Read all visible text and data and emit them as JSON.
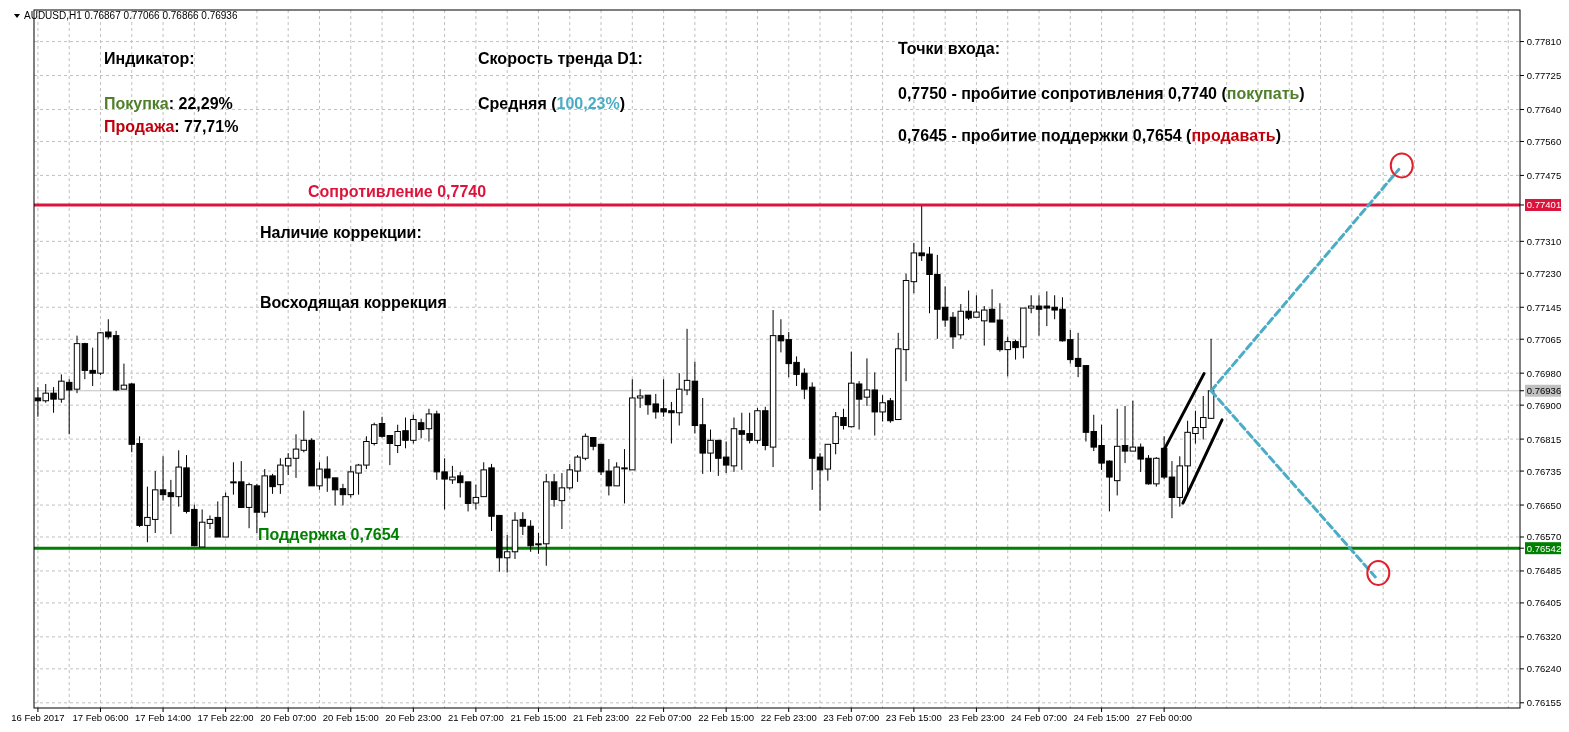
{
  "chart_data": {
    "type": "candlestick",
    "title": "AUDUSD,H1  0.76867 0.77066 0.76866 0.76936",
    "annotations": [
      "Индикатор:",
      "Покупка: 22,29%",
      "Продажа: 77,71%",
      "Скорость тренда D1:",
      "Средняя (100,23%)",
      "Точки входа:",
      "0,7750 - пробитие сопротивления 0,7740 (покупать)",
      "0,7645 - пробитие поддержки 0,7654 (продавать)",
      "Наличие коррекции:",
      "Восходящая коррекция"
    ],
    "categories": [
      "16 Feb 2017",
      null,
      null,
      null,
      null,
      null,
      null,
      null,
      "17 Feb 06:00",
      null,
      null,
      null,
      null,
      null,
      null,
      null,
      "17 Feb 14:00",
      null,
      null,
      null,
      null,
      null,
      null,
      null,
      "17 Feb 22:00",
      null,
      null,
      null,
      null,
      null,
      null,
      null,
      "20 Feb 07:00",
      null,
      null,
      null,
      null,
      null,
      null,
      null,
      "20 Feb 15:00",
      null,
      null,
      null,
      null,
      null,
      null,
      null,
      "20 Feb 23:00",
      null,
      null,
      null,
      null,
      null,
      null,
      null,
      "21 Feb 07:00",
      null,
      null,
      null,
      null,
      null,
      null,
      null,
      "21 Feb 15:00",
      null,
      null,
      null,
      null,
      null,
      null,
      null,
      "21 Feb 23:00",
      null,
      null,
      null,
      null,
      null,
      null,
      null,
      "22 Feb 07:00",
      null,
      null,
      null,
      null,
      null,
      null,
      null,
      "22 Feb 15:00",
      null,
      null,
      null,
      null,
      null,
      null,
      null,
      "22 Feb 23:00",
      null,
      null,
      null,
      null,
      null,
      null,
      null,
      "23 Feb 07:00",
      null,
      null,
      null,
      null,
      null,
      null,
      null,
      "23 Feb 15:00",
      null,
      null,
      null,
      null,
      null,
      null,
      null,
      "23 Feb 23:00",
      null,
      null,
      null,
      null,
      null,
      null,
      null,
      "24 Feb 07:00",
      null,
      null,
      null,
      null,
      null,
      null,
      null,
      "24 Feb 15:00",
      null,
      null,
      null,
      null,
      null,
      null,
      null,
      "27 Feb 00:00",
      null,
      null,
      null,
      null,
      null,
      null,
      null,
      null,
      null,
      null,
      null,
      null,
      null,
      null,
      null,
      null,
      null,
      null,
      null,
      null,
      null,
      null,
      null,
      null,
      null,
      null,
      null,
      null,
      null,
      null,
      null,
      null,
      null,
      null,
      null,
      null,
      null,
      null,
      null,
      null,
      null,
      null,
      null,
      null,
      null
    ],
    "ohlc": [
      [
        0.76918,
        0.76945,
        0.76871,
        0.76911
      ],
      [
        0.76911,
        0.76953,
        0.76906,
        0.7693
      ],
      [
        0.7693,
        0.76945,
        0.76881,
        0.76915
      ],
      [
        0.76915,
        0.76977,
        0.76906,
        0.7696
      ],
      [
        0.76957,
        0.76965,
        0.76827,
        0.76938
      ],
      [
        0.7694,
        0.77074,
        0.7693,
        0.77054
      ],
      [
        0.77054,
        0.77056,
        0.76965,
        0.76987
      ],
      [
        0.76987,
        0.77044,
        0.76948,
        0.7698
      ],
      [
        0.7698,
        0.77083,
        0.76975,
        0.77081
      ],
      [
        0.77083,
        0.77115,
        0.77066,
        0.77071
      ],
      [
        0.77074,
        0.77086,
        0.76935,
        0.76938
      ],
      [
        0.7694,
        0.77004,
        0.7694,
        0.7695
      ],
      [
        0.76953,
        0.76955,
        0.76782,
        0.76802
      ],
      [
        0.76804,
        0.76822,
        0.76595,
        0.76599
      ],
      [
        0.76599,
        0.76696,
        0.76557,
        0.76619
      ],
      [
        0.76614,
        0.76735,
        0.7658,
        0.76688
      ],
      [
        0.76688,
        0.76772,
        0.76661,
        0.76676
      ],
      [
        0.76681,
        0.76713,
        0.76577,
        0.76671
      ],
      [
        0.76671,
        0.76787,
        0.76646,
        0.76745
      ],
      [
        0.76743,
        0.76775,
        0.76629,
        0.76634
      ],
      [
        0.76639,
        0.76651,
        0.76548,
        0.76548
      ],
      [
        0.76545,
        0.76639,
        0.76545,
        0.76607
      ],
      [
        0.76604,
        0.76624,
        0.7659,
        0.76614
      ],
      [
        0.76619,
        0.76659,
        0.7657,
        0.7657
      ],
      [
        0.7657,
        0.76681,
        0.7657,
        0.76671
      ],
      [
        0.76708,
        0.76757,
        0.76676,
        0.76708
      ],
      [
        0.76708,
        0.7676,
        0.76644,
        0.76644
      ],
      [
        0.76644,
        0.76706,
        0.76592,
        0.76701
      ],
      [
        0.76698,
        0.76703,
        0.7658,
        0.76632
      ],
      [
        0.76632,
        0.7674,
        0.76619,
        0.76723
      ],
      [
        0.76723,
        0.76728,
        0.76678,
        0.76696
      ],
      [
        0.76701,
        0.76767,
        0.76678,
        0.7675
      ],
      [
        0.76748,
        0.7678,
        0.76725,
        0.76767
      ],
      [
        0.76767,
        0.76827,
        0.76718,
        0.7679
      ],
      [
        0.76787,
        0.76886,
        0.76782,
        0.76812
      ],
      [
        0.76812,
        0.76817,
        0.76698,
        0.76698
      ],
      [
        0.76698,
        0.76757,
        0.76688,
        0.7674
      ],
      [
        0.7674,
        0.76772,
        0.76683,
        0.76718
      ],
      [
        0.76718,
        0.76718,
        0.76649,
        0.76688
      ],
      [
        0.76691,
        0.76703,
        0.76649,
        0.76676
      ],
      [
        0.76676,
        0.76748,
        0.76669,
        0.76733
      ],
      [
        0.7673,
        0.76753,
        0.76676,
        0.7675
      ],
      [
        0.7675,
        0.76822,
        0.7674,
        0.76809
      ],
      [
        0.76804,
        0.76856,
        0.76799,
        0.76851
      ],
      [
        0.76854,
        0.76871,
        0.76819,
        0.76822
      ],
      [
        0.76824,
        0.76824,
        0.7675,
        0.76804
      ],
      [
        0.76799,
        0.76851,
        0.7678,
        0.76834
      ],
      [
        0.76836,
        0.76869,
        0.76792,
        0.76812
      ],
      [
        0.76812,
        0.76876,
        0.76804,
        0.76864
      ],
      [
        0.76856,
        0.76866,
        0.76817,
        0.76839
      ],
      [
        0.76841,
        0.76891,
        0.76809,
        0.76878
      ],
      [
        0.76878,
        0.76886,
        0.76713,
        0.76733
      ],
      [
        0.76733,
        0.76767,
        0.76639,
        0.76715
      ],
      [
        0.76713,
        0.76748,
        0.76703,
        0.7672
      ],
      [
        0.76723,
        0.76733,
        0.76669,
        0.76706
      ],
      [
        0.76708,
        0.76708,
        0.76634,
        0.76654
      ],
      [
        0.76655,
        0.76701,
        0.76639,
        0.76669
      ],
      [
        0.76671,
        0.76757,
        0.76671,
        0.76738
      ],
      [
        0.76743,
        0.76753,
        0.76585,
        0.76622
      ],
      [
        0.76624,
        0.76624,
        0.76483,
        0.76518
      ],
      [
        0.76518,
        0.76575,
        0.76481,
        0.76533
      ],
      [
        0.76533,
        0.76632,
        0.76515,
        0.76612
      ],
      [
        0.76614,
        0.76632,
        0.76575,
        0.76597
      ],
      [
        0.76597,
        0.76612,
        0.76533,
        0.76548
      ],
      [
        0.76553,
        0.7658,
        0.76528,
        0.76553
      ],
      [
        0.76553,
        0.76728,
        0.76498,
        0.76708
      ],
      [
        0.76708,
        0.76728,
        0.76646,
        0.76664
      ],
      [
        0.76661,
        0.7673,
        0.7659,
        0.76693
      ],
      [
        0.76693,
        0.76753,
        0.76688,
        0.76738
      ],
      [
        0.76735,
        0.76775,
        0.76708,
        0.7677
      ],
      [
        0.76767,
        0.76829,
        0.76762,
        0.76822
      ],
      [
        0.76819,
        0.76819,
        0.76787,
        0.76797
      ],
      [
        0.76802,
        0.76802,
        0.76725,
        0.76733
      ],
      [
        0.76735,
        0.76765,
        0.76674,
        0.76698
      ],
      [
        0.76698,
        0.76757,
        0.76698,
        0.76745
      ],
      [
        0.76743,
        0.7679,
        0.76654,
        0.76743
      ],
      [
        0.76738,
        0.76965,
        0.76738,
        0.76918
      ],
      [
        0.76918,
        0.7694,
        0.76893,
        0.76923
      ],
      [
        0.76925,
        0.76925,
        0.76876,
        0.76901
      ],
      [
        0.76903,
        0.76928,
        0.76866,
        0.76883
      ],
      [
        0.76891,
        0.76965,
        0.76871,
        0.76883
      ],
      [
        0.76886,
        0.76908,
        0.76804,
        0.76881
      ],
      [
        0.76881,
        0.7698,
        0.76849,
        0.7694
      ],
      [
        0.76938,
        0.77091,
        0.76925,
        0.76962
      ],
      [
        0.7696,
        0.77009,
        0.76829,
        0.76849
      ],
      [
        0.76851,
        0.76918,
        0.76728,
        0.7678
      ],
      [
        0.7678,
        0.76839,
        0.76733,
        0.76812
      ],
      [
        0.76812,
        0.76812,
        0.76723,
        0.76767
      ],
      [
        0.7677,
        0.76809,
        0.7673,
        0.7675
      ],
      [
        0.76748,
        0.76869,
        0.76733,
        0.76841
      ],
      [
        0.76836,
        0.76881,
        0.76738,
        0.76827
      ],
      [
        0.76829,
        0.76881,
        0.76804,
        0.76812
      ],
      [
        0.76812,
        0.76893,
        0.76804,
        0.76886
      ],
      [
        0.76886,
        0.76896,
        0.76787,
        0.76799
      ],
      [
        0.76795,
        0.77138,
        0.76745,
        0.77074
      ],
      [
        0.77074,
        0.77115,
        0.77032,
        0.77061
      ],
      [
        0.77064,
        0.77083,
        0.7697,
        0.77004
      ],
      [
        0.77007,
        0.77022,
        0.76948,
        0.76977
      ],
      [
        0.7698,
        0.76992,
        0.76915,
        0.7694
      ],
      [
        0.76945,
        0.76957,
        0.76688,
        0.76767
      ],
      [
        0.7677,
        0.7678,
        0.76636,
        0.76738
      ],
      [
        0.7674,
        0.76802,
        0.76711,
        0.76802
      ],
      [
        0.76804,
        0.76883,
        0.76777,
        0.76871
      ],
      [
        0.76869,
        0.76891,
        0.76839,
        0.76849
      ],
      [
        0.76846,
        0.77034,
        0.76844,
        0.76955
      ],
      [
        0.76953,
        0.7696,
        0.76839,
        0.76915
      ],
      [
        0.7692,
        0.77017,
        0.76898,
        0.76938
      ],
      [
        0.76938,
        0.76982,
        0.76824,
        0.76883
      ],
      [
        0.76883,
        0.76925,
        0.76859,
        0.76906
      ],
      [
        0.76911,
        0.76918,
        0.76856,
        0.76861
      ],
      [
        0.76864,
        0.77081,
        0.76864,
        0.77041
      ],
      [
        0.77039,
        0.77229,
        0.7696,
        0.77212
      ],
      [
        0.77209,
        0.77306,
        0.7718,
        0.77281
      ],
      [
        0.77281,
        0.77398,
        0.77261,
        0.77274
      ],
      [
        0.77278,
        0.77296,
        0.7713,
        0.77227
      ],
      [
        0.77227,
        0.77276,
        0.77066,
        0.7714
      ],
      [
        0.77145,
        0.77197,
        0.77096,
        0.77113
      ],
      [
        0.7712,
        0.77133,
        0.77041,
        0.77071
      ],
      [
        0.77076,
        0.77153,
        0.77066,
        0.77135
      ],
      [
        0.77135,
        0.77187,
        0.77113,
        0.77118
      ],
      [
        0.7712,
        0.77175,
        0.7712,
        0.77133
      ],
      [
        0.77111,
        0.77148,
        0.77049,
        0.77138
      ],
      [
        0.7714,
        0.7719,
        0.77108,
        0.77108
      ],
      [
        0.77113,
        0.77155,
        0.77034,
        0.77039
      ],
      [
        0.77039,
        0.77071,
        0.76972,
        0.77059
      ],
      [
        0.77059,
        0.77064,
        0.77014,
        0.77044
      ],
      [
        0.77046,
        0.77143,
        0.77017,
        0.77143
      ],
      [
        0.77143,
        0.77175,
        0.7713,
        0.77148
      ],
      [
        0.77148,
        0.77175,
        0.77074,
        0.7714
      ],
      [
        0.77148,
        0.77185,
        0.77098,
        0.77143
      ],
      [
        0.77145,
        0.77175,
        0.77115,
        0.77138
      ],
      [
        0.7714,
        0.7717,
        0.77059,
        0.77061
      ],
      [
        0.77064,
        0.77088,
        0.77004,
        0.77014
      ],
      [
        0.77017,
        0.77081,
        0.7697,
        0.76997
      ],
      [
        0.76999,
        0.76999,
        0.76809,
        0.76832
      ],
      [
        0.76834,
        0.76876,
        0.76785,
        0.76795
      ],
      [
        0.76799,
        0.76851,
        0.76738,
        0.76755
      ],
      [
        0.7676,
        0.76762,
        0.76634,
        0.7672
      ],
      [
        0.76711,
        0.76891,
        0.76674,
        0.76797
      ],
      [
        0.76799,
        0.76898,
        0.76755,
        0.76785
      ],
      [
        0.76785,
        0.76911,
        0.76785,
        0.76795
      ],
      [
        0.76795,
        0.76804,
        0.76733,
        0.76765
      ],
      [
        0.76767,
        0.76775,
        0.76701,
        0.76703
      ],
      [
        0.76703,
        0.7677,
        0.76696,
        0.76767
      ],
      [
        0.76792,
        0.76822,
        0.76715,
        0.7672
      ],
      [
        0.7672,
        0.7676,
        0.76617,
        0.76669
      ],
      [
        0.76669,
        0.76772,
        0.76646,
        0.76748
      ],
      [
        0.76748,
        0.76861,
        0.76674,
        0.76832
      ],
      [
        0.76829,
        0.76886,
        0.76804,
        0.76844
      ],
      [
        0.76844,
        0.76923,
        0.76814,
        0.76869
      ],
      [
        0.76867,
        0.77066,
        0.76866,
        0.76936
      ],
      null,
      null,
      null,
      null,
      null,
      null,
      null,
      null,
      null,
      null,
      null,
      null,
      null,
      null,
      null,
      null,
      null,
      null,
      null,
      null,
      null,
      null,
      null,
      null,
      null,
      null,
      null,
      null,
      null,
      null,
      null,
      null,
      null,
      null,
      null,
      null,
      null,
      null,
      null
    ],
    "series": [
      {
        "type": "line",
        "color": "#4bacc6",
        "line_style": "dashed",
        "values": [
          null,
          null,
          null,
          null,
          null,
          null,
          null,
          null,
          null,
          null,
          null,
          null,
          null,
          null,
          null,
          null,
          null,
          null,
          null,
          null,
          null,
          null,
          null,
          null,
          null,
          null,
          null,
          null,
          null,
          null,
          null,
          null,
          null,
          null,
          null,
          null,
          null,
          null,
          null,
          null,
          null,
          null,
          null,
          null,
          null,
          null,
          null,
          null,
          null,
          null,
          null,
          null,
          null,
          null,
          null,
          null,
          null,
          null,
          null,
          null,
          null,
          null,
          null,
          null,
          null,
          null,
          null,
          null,
          null,
          null,
          null,
          null,
          null,
          null,
          null,
          null,
          null,
          null,
          null,
          null,
          null,
          null,
          null,
          null,
          null,
          null,
          null,
          null,
          null,
          null,
          null,
          null,
          null,
          null,
          null,
          null,
          null,
          null,
          null,
          null,
          null,
          null,
          null,
          null,
          null,
          null,
          null,
          null,
          null,
          null,
          null,
          null,
          null,
          null,
          null,
          null,
          null,
          null,
          null,
          null,
          null,
          null,
          null,
          null,
          null,
          null,
          null,
          null,
          null,
          null,
          null,
          null,
          null,
          null,
          null,
          null,
          null,
          null,
          null,
          null,
          null,
          null,
          null,
          null,
          null,
          null,
          null,
          null,
          null,
          null,
          0.76936,
          null,
          null,
          null,
          null,
          null,
          null,
          null,
          null,
          null,
          null,
          null,
          null,
          null,
          null,
          null,
          null,
          null,
          null,
          null,
          null,
          null,
          null,
          null,
          0.7749,
          null,
          null,
          null,
          null,
          null,
          null,
          null,
          null,
          null,
          null,
          null,
          null,
          null,
          null,
          null
        ]
      },
      {
        "type": "line",
        "color": "#4bacc6",
        "line_style": "dashed",
        "values": [
          null,
          null,
          null,
          null,
          null,
          null,
          null,
          null,
          null,
          null,
          null,
          null,
          null,
          null,
          null,
          null,
          null,
          null,
          null,
          null,
          null,
          null,
          null,
          null,
          null,
          null,
          null,
          null,
          null,
          null,
          null,
          null,
          null,
          null,
          null,
          null,
          null,
          null,
          null,
          null,
          null,
          null,
          null,
          null,
          null,
          null,
          null,
          null,
          null,
          null,
          null,
          null,
          null,
          null,
          null,
          null,
          null,
          null,
          null,
          null,
          null,
          null,
          null,
          null,
          null,
          null,
          null,
          null,
          null,
          null,
          null,
          null,
          null,
          null,
          null,
          null,
          null,
          null,
          null,
          null,
          null,
          null,
          null,
          null,
          null,
          null,
          null,
          null,
          null,
          null,
          null,
          null,
          null,
          null,
          null,
          null,
          null,
          null,
          null,
          null,
          null,
          null,
          null,
          null,
          null,
          null,
          null,
          null,
          null,
          null,
          null,
          null,
          null,
          null,
          null,
          null,
          null,
          null,
          null,
          null,
          null,
          null,
          null,
          null,
          null,
          null,
          null,
          null,
          null,
          null,
          null,
          null,
          null,
          null,
          null,
          null,
          null,
          null,
          null,
          null,
          null,
          null,
          null,
          null,
          null,
          null,
          null,
          null,
          null,
          null,
          0.76936,
          null,
          null,
          null,
          null,
          null,
          null,
          null,
          null,
          null,
          null,
          null,
          null,
          null,
          null,
          null,
          null,
          null,
          null,
          null,
          null,
          0.7647,
          null,
          null,
          null,
          null,
          null,
          null,
          null,
          null,
          null,
          null,
          null,
          null,
          null,
          null,
          null,
          null,
          null,
          null
        ]
      }
    ],
    "ylim": [
      0.76142,
      0.77889
    ],
    "yticks": [
      {
        "value": 0.7781,
        "label": "0.77810"
      },
      0.77725,
      {
        "value": 0.7764,
        "label": "0.77640"
      },
      {
        "value": 0.7756,
        "label": "0.77560"
      },
      0.77475,
      {
        "value": 0.77401,
        "label": "0.77401"
      },
      {
        "value": 0.7731,
        "label": "0.77310"
      },
      {
        "value": 0.7723,
        "label": "0.77230"
      },
      0.77145,
      0.77065,
      {
        "value": 0.7698,
        "label": "0.76980"
      },
      {
        "value": 0.76936,
        "label": "0.76936"
      },
      {
        "value": 0.769,
        "label": "0.76900"
      },
      0.76815,
      0.76735,
      {
        "value": 0.7665,
        "label": "0.76650"
      },
      {
        "value": 0.7657,
        "label": "0.76570"
      },
      {
        "value": 0.76542,
        "label": "0.76542"
      },
      0.76485,
      0.76405,
      {
        "value": 0.7632,
        "label": "0.76320"
      },
      {
        "value": 0.7624,
        "label": "0.76240"
      },
      0.76155
    ],
    "ref_lines": [
      {
        "axis": "y",
        "value": 0.77401,
        "label": "Сопротивление 0,7740",
        "color": "#dc143c"
      },
      {
        "axis": "y",
        "value": 0.76542,
        "label": "Поддержка 0,7654",
        "color": "#008000"
      },
      {
        "axis": "y",
        "value": 0.76936,
        "label": null,
        "color": "#c0c0c0"
      }
    ],
    "grid": true
  }
}
